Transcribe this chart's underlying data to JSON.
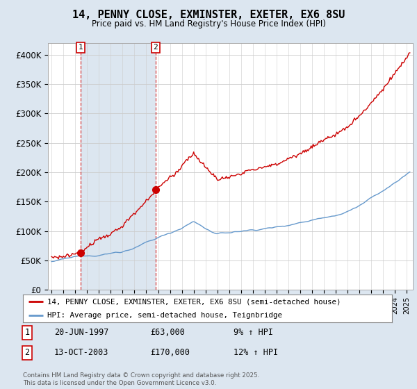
{
  "title": "14, PENNY CLOSE, EXMINSTER, EXETER, EX6 8SU",
  "subtitle": "Price paid vs. HM Land Registry's House Price Index (HPI)",
  "transaction_info": [
    {
      "num": "1",
      "date": "20-JUN-1997",
      "price": "£63,000",
      "change": "9% ↑ HPI"
    },
    {
      "num": "2",
      "date": "13-OCT-2003",
      "price": "£170,000",
      "change": "12% ↑ HPI"
    }
  ],
  "legend_entries": [
    "14, PENNY CLOSE, EXMINSTER, EXETER, EX6 8SU (semi-detached house)",
    "HPI: Average price, semi-detached house, Teignbridge"
  ],
  "footer": "Contains HM Land Registry data © Crown copyright and database right 2025.\nThis data is licensed under the Open Government Licence v3.0.",
  "price_line_color": "#cc0000",
  "hpi_line_color": "#6699cc",
  "background_color": "#dce6f0",
  "plot_bg_color": "#ffffff",
  "shade_color": "#dce6f0",
  "ylim": [
    0,
    420000
  ],
  "yticks": [
    0,
    50000,
    100000,
    150000,
    200000,
    250000,
    300000,
    350000,
    400000
  ],
  "ytick_labels": [
    "£0",
    "£50K",
    "£100K",
    "£150K",
    "£200K",
    "£250K",
    "£300K",
    "£350K",
    "£400K"
  ],
  "xstart_year": 1995,
  "xend_year": 2026,
  "t1": 1997.458,
  "t2": 2003.792,
  "p1": 63000,
  "p2": 170000
}
